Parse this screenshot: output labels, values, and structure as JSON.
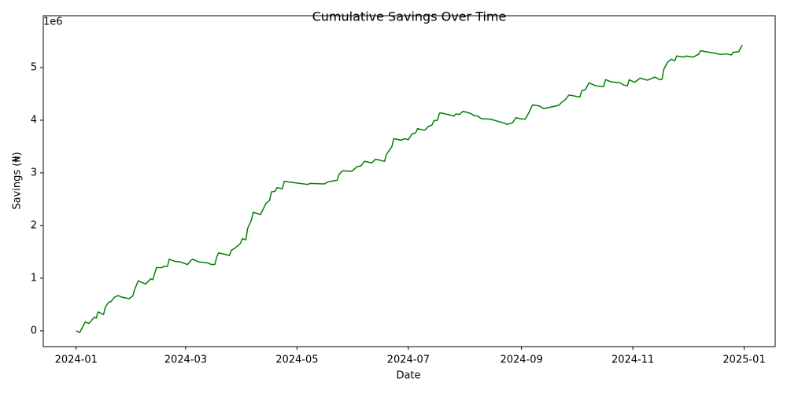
{
  "chart_data": {
    "type": "line",
    "title": "Cumulative Savings Over Time",
    "x_label": "Date",
    "y_label": "Savings (₦)",
    "y_offset_label": "1e6",
    "x": [
      "2024-01-01",
      "2024-01-03",
      "2024-01-06",
      "2024-01-08",
      "2024-01-11",
      "2024-01-12",
      "2024-01-13",
      "2024-01-16",
      "2024-01-17",
      "2024-01-19",
      "2024-01-20",
      "2024-01-22",
      "2024-01-24",
      "2024-01-26",
      "2024-01-30",
      "2024-02-01",
      "2024-02-02",
      "2024-02-04",
      "2024-02-08",
      "2024-02-11",
      "2024-02-12",
      "2024-02-14",
      "2024-02-17",
      "2024-02-18",
      "2024-02-20",
      "2024-02-21",
      "2024-02-24",
      "2024-02-27",
      "2024-03-02",
      "2024-03-04",
      "2024-03-05",
      "2024-03-08",
      "2024-03-13",
      "2024-03-15",
      "2024-03-17",
      "2024-03-18",
      "2024-03-19",
      "2024-03-23",
      "2024-03-25",
      "2024-03-26",
      "2024-03-28",
      "2024-03-31",
      "2024-04-01",
      "2024-04-03",
      "2024-04-04",
      "2024-04-06",
      "2024-04-07",
      "2024-04-11",
      "2024-04-13",
      "2024-04-14",
      "2024-04-16",
      "2024-04-17",
      "2024-04-19",
      "2024-04-20",
      "2024-04-23",
      "2024-04-24",
      "2024-04-26",
      "2024-05-07",
      "2024-05-08",
      "2024-05-16",
      "2024-05-18",
      "2024-05-20",
      "2024-05-21",
      "2024-05-23",
      "2024-05-24",
      "2024-05-26",
      "2024-05-31",
      "2024-06-03",
      "2024-06-05",
      "2024-06-07",
      "2024-06-11",
      "2024-06-13",
      "2024-06-18",
      "2024-06-19",
      "2024-06-22",
      "2024-06-23",
      "2024-06-27",
      "2024-06-29",
      "2024-07-01",
      "2024-07-03",
      "2024-07-05",
      "2024-07-06",
      "2024-07-10",
      "2024-07-12",
      "2024-07-14",
      "2024-07-15",
      "2024-07-17",
      "2024-07-18",
      "2024-07-19",
      "2024-07-26",
      "2024-07-27",
      "2024-07-29",
      "2024-07-31",
      "2024-08-04",
      "2024-08-06",
      "2024-08-08",
      "2024-08-10",
      "2024-08-15",
      "2024-08-19",
      "2024-08-23",
      "2024-08-24",
      "2024-08-27",
      "2024-08-29",
      "2024-08-31",
      "2024-09-03",
      "2024-09-05",
      "2024-09-07",
      "2024-09-11",
      "2024-09-13",
      "2024-09-21",
      "2024-09-22",
      "2024-09-23",
      "2024-09-25",
      "2024-09-27",
      "2024-10-03",
      "2024-10-04",
      "2024-10-06",
      "2024-10-08",
      "2024-10-12",
      "2024-10-16",
      "2024-10-17",
      "2024-10-18",
      "2024-10-20",
      "2024-10-25",
      "2024-10-27",
      "2024-10-29",
      "2024-10-30",
      "2024-11-02",
      "2024-11-05",
      "2024-11-09",
      "2024-11-13",
      "2024-11-16",
      "2024-11-17",
      "2024-11-18",
      "2024-11-20",
      "2024-11-22",
      "2024-11-24",
      "2024-11-25",
      "2024-11-29",
      "2024-11-30",
      "2024-12-04",
      "2024-12-07",
      "2024-12-08",
      "2024-12-11",
      "2024-12-15",
      "2024-12-19",
      "2024-12-22",
      "2024-12-25",
      "2024-12-26",
      "2024-12-29",
      "2024-12-30",
      "2024-12-31"
    ],
    "series": [
      {
        "name": "Savings",
        "color": "#008000",
        "values": [
          0,
          -30000,
          170000,
          140000,
          260000,
          240000,
          360000,
          310000,
          450000,
          550000,
          550000,
          640000,
          670000,
          640000,
          610000,
          660000,
          780000,
          950000,
          890000,
          990000,
          970000,
          1200000,
          1200000,
          1230000,
          1220000,
          1360000,
          1320000,
          1310000,
          1260000,
          1340000,
          1360000,
          1310000,
          1290000,
          1260000,
          1260000,
          1400000,
          1480000,
          1450000,
          1430000,
          1530000,
          1570000,
          1660000,
          1750000,
          1730000,
          1950000,
          2100000,
          2250000,
          2210000,
          2350000,
          2420000,
          2480000,
          2640000,
          2650000,
          2720000,
          2700000,
          2840000,
          2830000,
          2780000,
          2800000,
          2790000,
          2830000,
          2840000,
          2850000,
          2860000,
          2970000,
          3040000,
          3030000,
          3120000,
          3130000,
          3220000,
          3190000,
          3260000,
          3220000,
          3350000,
          3500000,
          3650000,
          3620000,
          3650000,
          3630000,
          3740000,
          3760000,
          3840000,
          3810000,
          3880000,
          3910000,
          3990000,
          4000000,
          4130000,
          4140000,
          4080000,
          4120000,
          4110000,
          4170000,
          4130000,
          4090000,
          4080000,
          4030000,
          4020000,
          3980000,
          3940000,
          3920000,
          3950000,
          4050000,
          4030000,
          4020000,
          4140000,
          4290000,
          4270000,
          4220000,
          4280000,
          4300000,
          4340000,
          4390000,
          4480000,
          4440000,
          4560000,
          4580000,
          4710000,
          4650000,
          4640000,
          4770000,
          4760000,
          4730000,
          4710000,
          4670000,
          4650000,
          4770000,
          4720000,
          4800000,
          4760000,
          4820000,
          4770000,
          4780000,
          4970000,
          5100000,
          5160000,
          5130000,
          5220000,
          5200000,
          5220000,
          5200000,
          5250000,
          5320000,
          5300000,
          5280000,
          5250000,
          5260000,
          5240000,
          5290000,
          5300000,
          5370000,
          5430000
        ]
      }
    ],
    "xlim": [
      "2023-12-14",
      "2025-01-18"
    ],
    "xticks": [
      {
        "value": "2024-01-01",
        "label": "2024-01"
      },
      {
        "value": "2024-03-01",
        "label": "2024-03"
      },
      {
        "value": "2024-05-01",
        "label": "2024-05"
      },
      {
        "value": "2024-07-01",
        "label": "2024-07"
      },
      {
        "value": "2024-09-01",
        "label": "2024-09"
      },
      {
        "value": "2024-11-01",
        "label": "2024-11"
      },
      {
        "value": "2025-01-01",
        "label": "2025-01"
      }
    ],
    "ylim": [
      -300000,
      5985000
    ],
    "yticks": [
      0,
      {
        "value": 1000000,
        "label": "1"
      },
      {
        "value": 2000000,
        "label": "2"
      },
      {
        "value": 3000000,
        "label": "3"
      },
      {
        "value": 4000000,
        "label": "4"
      },
      {
        "value": 5000000,
        "label": "5"
      }
    ],
    "grid": false
  }
}
